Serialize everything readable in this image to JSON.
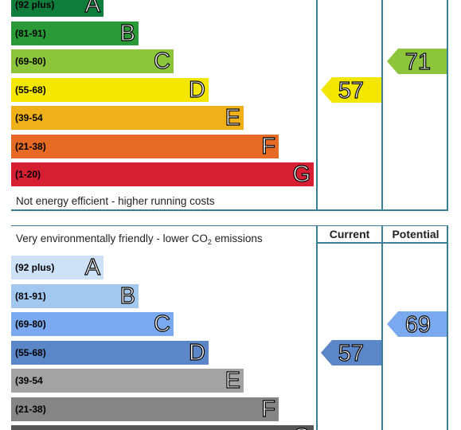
{
  "chart_data": [
    {
      "type": "bar",
      "name": "energy-efficiency-rating",
      "footer_note": "Not energy efficient - higher running costs",
      "columns": [
        "Current",
        "Potential"
      ],
      "bands": [
        {
          "letter": "A",
          "range": "(92 plus)",
          "color": "#107d3c"
        },
        {
          "letter": "B",
          "range": "(81-91)",
          "color": "#2a9a38"
        },
        {
          "letter": "C",
          "range": "(69-80)",
          "color": "#8cc43c"
        },
        {
          "letter": "D",
          "range": "(55-68)",
          "color": "#f3e600"
        },
        {
          "letter": "E",
          "range": "(39-54",
          "color": "#f0b01a"
        },
        {
          "letter": "F",
          "range": "(21-38)",
          "color": "#e66a24"
        },
        {
          "letter": "G",
          "range": "(1-20)",
          "color": "#d61f32"
        }
      ],
      "current": {
        "value": "57",
        "band": "D",
        "color": "#f3e600"
      },
      "potential": {
        "value": "71",
        "band": "C",
        "color": "#8cc43c"
      }
    },
    {
      "type": "bar",
      "name": "environmental-impact-rating",
      "header_note_prefix": "Very environmentally friendly - lower CO",
      "header_note_sub": "2",
      "header_note_suffix": " emissions",
      "columns": [
        "Current",
        "Potential"
      ],
      "bands": [
        {
          "letter": "A",
          "range": "(92 plus)",
          "color": "#cde2f7"
        },
        {
          "letter": "B",
          "range": "(81-91)",
          "color": "#a3c8f0"
        },
        {
          "letter": "C",
          "range": "(69-80)",
          "color": "#7aa9ef"
        },
        {
          "letter": "D",
          "range": "(55-68)",
          "color": "#5b86c8"
        },
        {
          "letter": "E",
          "range": "(39-54",
          "color": "#a3a3a3"
        },
        {
          "letter": "F",
          "range": "(21-38)",
          "color": "#858585"
        },
        {
          "letter": "G",
          "range": "",
          "color": "#555555"
        }
      ],
      "current": {
        "value": "57",
        "band": "D",
        "color": "#5b86c8"
      },
      "potential": {
        "value": "69",
        "band": "C",
        "color": "#7aa9ef"
      }
    }
  ]
}
